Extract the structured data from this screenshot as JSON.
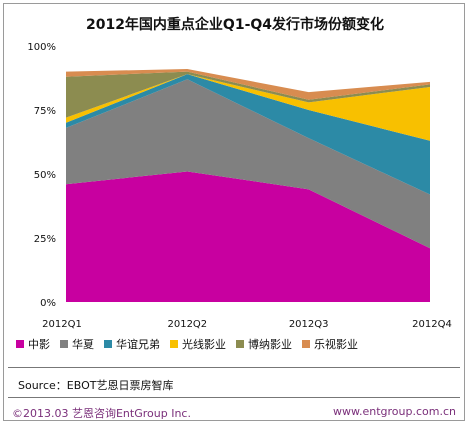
{
  "title": "2012年国内重点企业Q1-Q4发行市场份额变化",
  "source": "Source：EBOT艺恩日票房智库",
  "footer": {
    "copyright": "©2013.03  艺恩咨询EntGroup Inc.",
    "website": "www.entgroup.com.cn"
  },
  "chart_data": {
    "type": "area",
    "stacked": true,
    "title": "2012年国内重点企业Q1-Q4发行市场份额变化",
    "categories": [
      "2012Q1",
      "2012Q2",
      "2012Q3",
      "2012Q4"
    ],
    "y_ticks": [
      "0%",
      "25%",
      "50%",
      "75%",
      "100%"
    ],
    "ylim": [
      0,
      100
    ],
    "grid": false,
    "legend_position": "bottom",
    "series": [
      {
        "name": "中影",
        "color": "#c800a0",
        "values": [
          46,
          51,
          44,
          21
        ]
      },
      {
        "name": "华夏",
        "color": "#808080",
        "values": [
          22,
          36,
          20,
          21
        ]
      },
      {
        "name": "华谊兄弟",
        "color": "#2c8aa6",
        "values": [
          2,
          2,
          11,
          21
        ]
      },
      {
        "name": "光线影业",
        "color": "#f8c000",
        "values": [
          2,
          0,
          3,
          21
        ]
      },
      {
        "name": "博纳影业",
        "color": "#8c8c50",
        "values": [
          16,
          1,
          1,
          1
        ]
      },
      {
        "name": "乐视影业",
        "color": "#d88c50",
        "values": [
          2,
          1,
          3,
          1
        ]
      }
    ]
  }
}
